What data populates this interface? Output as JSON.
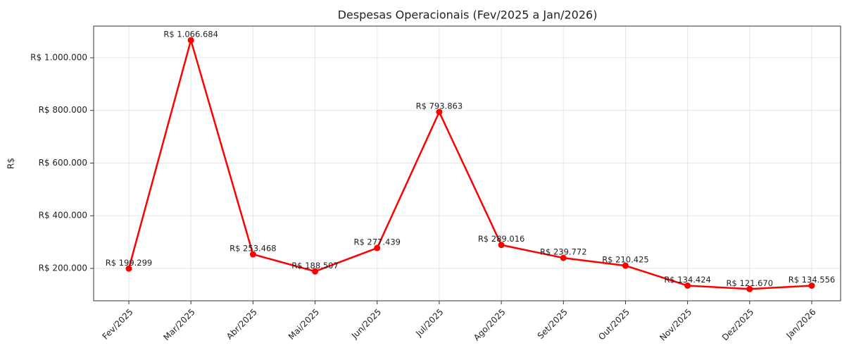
{
  "chart_data": {
    "type": "line",
    "title": "Despesas Operacionais (Fev/2025 a Jan/2026)",
    "y_label": "R$",
    "categories": [
      "Fev/2025",
      "Mar/2025",
      "Abr/2025",
      "Mai/2025",
      "Jun/2025",
      "Jul/2025",
      "Ago/2025",
      "Set/2025",
      "Out/2025",
      "Nov/2025",
      "Dez/2025",
      "Jan/2026"
    ],
    "series": [
      {
        "name": "Despesas Operacionais",
        "color": "#ff0000",
        "values": [
          199299,
          1066684,
          253468,
          188507,
          277439,
          793863,
          289016,
          239772,
          210425,
          134424,
          121670,
          134556
        ],
        "value_labels": [
          "R$ 199.299",
          "R$ 1.066.684",
          "R$ 253.468",
          "R$ 188.507",
          "R$ 277.439",
          "R$ 793.863",
          "R$ 289.016",
          "R$ 239.772",
          "R$ 210.425",
          "R$ 134.424",
          "R$ 121.670",
          "R$ 134.556"
        ]
      }
    ],
    "ylim": [
      76900,
      1120400
    ],
    "yticks": [
      {
        "value": 200000,
        "label": "R$ 200.000"
      },
      {
        "value": 400000,
        "label": "R$ 400.000"
      },
      {
        "value": 600000,
        "label": "R$ 600.000"
      },
      {
        "value": 800000,
        "label": "R$ 800.000"
      },
      {
        "value": 1000000,
        "label": "R$ 1.000.000"
      }
    ],
    "grid": true
  }
}
